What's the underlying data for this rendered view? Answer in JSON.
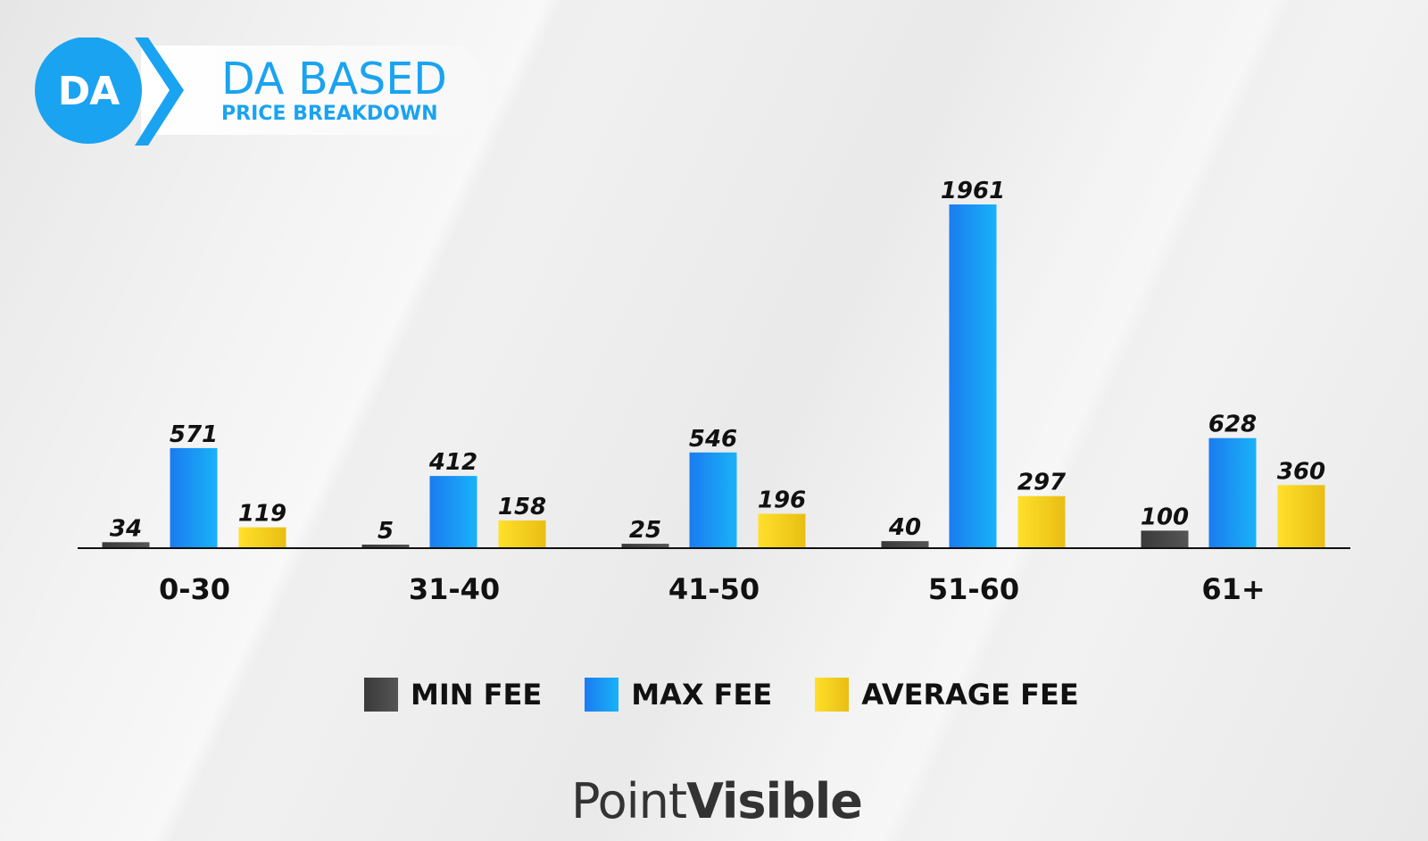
{
  "header": {
    "logo_text": "DA",
    "title": "DA BASED",
    "subtitle": "PRICE BREAKDOWN"
  },
  "brand": {
    "part1": "Point",
    "part2": "Visible",
    "colors": {
      "text": "#333333",
      "accent": "#f2c811"
    }
  },
  "legend": [
    {
      "label": "MIN FEE",
      "color": "#444444"
    },
    {
      "label": "MAX FEE",
      "color": "#1e90ff"
    },
    {
      "label": "AVERAGE FEE",
      "color": "#f6cf1c"
    }
  ],
  "chart_data": {
    "type": "bar",
    "title": "",
    "categories": [
      "0-30",
      "31-40",
      "41-50",
      "51-60",
      "61+"
    ],
    "series": [
      {
        "name": "MIN FEE",
        "values": [
          34,
          5,
          25,
          40,
          100
        ],
        "color": "#444444"
      },
      {
        "name": "MAX FEE",
        "values": [
          571,
          412,
          546,
          1961,
          628
        ],
        "color": "#1e90ff"
      },
      {
        "name": "AVERAGE FEE",
        "values": [
          119,
          158,
          196,
          297,
          360
        ],
        "color": "#f6cf1c"
      }
    ],
    "xlabel": "",
    "ylabel": "",
    "ylim": [
      0,
      1961
    ],
    "grid": false,
    "legend_position": "bottom"
  }
}
